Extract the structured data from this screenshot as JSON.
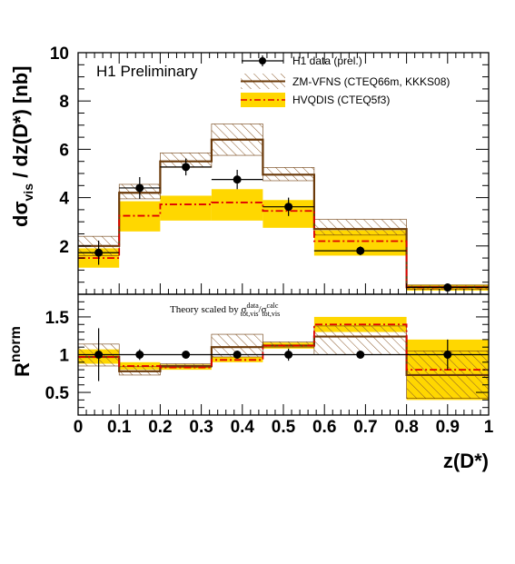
{
  "chart_data": [
    {
      "type": "histogram",
      "panel": "top",
      "annotation": "H1 Preliminary",
      "ylabel": "dσvis / dz(D*) [nb]",
      "ylabel_parts": {
        "d1": "d",
        "sigma": "σ",
        "sub": "vis",
        "rest": " / dz(D*) [nb]"
      },
      "ylim": [
        0,
        10
      ],
      "yticks": [
        "2",
        "4",
        "6",
        "8",
        "10"
      ],
      "bin_edges": [
        0,
        0.1,
        0.2,
        0.325,
        0.45,
        0.575,
        0.8,
        1.0
      ],
      "legend": [
        "H1 data (prel.)",
        "ZM-VFNS (CTEQ66m, KKKS08)",
        "HVQDIS (CTEQ5f3)"
      ],
      "data_points": [
        {
          "x": 0.05,
          "y": 1.72,
          "err": 0.5,
          "xerr": 0.05
        },
        {
          "x": 0.15,
          "y": 4.4,
          "err": 0.45,
          "xerr": 0.05
        },
        {
          "x": 0.2625,
          "y": 5.27,
          "err": 0.35,
          "xerr": 0.0625
        },
        {
          "x": 0.3875,
          "y": 4.75,
          "err": 0.4,
          "xerr": 0.0625
        },
        {
          "x": 0.5125,
          "y": 3.62,
          "err": 0.38,
          "xerr": 0.0625
        },
        {
          "x": 0.6875,
          "y": 1.8,
          "err": 0.18,
          "xerr": 0.1125
        },
        {
          "x": 0.9,
          "y": 0.28,
          "err": 0.06,
          "xerr": 0.1
        }
      ],
      "zmvfns": {
        "central": [
          2.0,
          4.2,
          5.5,
          6.4,
          4.95,
          2.7,
          0.3
        ],
        "low": [
          1.6,
          3.95,
          5.25,
          5.75,
          4.7,
          2.45,
          0.2
        ],
        "high": [
          2.4,
          4.55,
          5.85,
          7.05,
          5.25,
          3.1,
          0.38
        ]
      },
      "hvqdis": {
        "central": [
          1.5,
          3.25,
          3.72,
          3.8,
          3.45,
          2.2,
          0.28
        ],
        "low": [
          1.1,
          2.6,
          3.05,
          3.05,
          2.75,
          1.6,
          0.15
        ],
        "high": [
          1.9,
          3.85,
          4.08,
          4.35,
          3.9,
          2.65,
          0.4
        ]
      }
    },
    {
      "type": "histogram",
      "panel": "bottom",
      "ylabel": "R norm",
      "ylabel_parts": {
        "main": "R",
        "sup": "norm"
      },
      "ylim": [
        0.2,
        1.8
      ],
      "yticks": [
        "0.5",
        "1",
        "1.5"
      ],
      "xlabel": "z(D*)",
      "xlim": [
        0,
        1
      ],
      "xticks": [
        "0",
        "0.1",
        "0.2",
        "0.3",
        "0.4",
        "0.5",
        "0.6",
        "0.7",
        "0.8",
        "0.9",
        "1"
      ],
      "note": {
        "prefix": "Theory scaled by ",
        "s1": "σ",
        "s1_sup": "data",
        "s1_sub": "tot,vis",
        "slash": "/",
        "s2": "σ",
        "s2_sup": "calc",
        "s2_sub": "tot,vis"
      },
      "reference_line": 1.0,
      "bin_edges": [
        0,
        0.1,
        0.2,
        0.325,
        0.45,
        0.575,
        0.8,
        1.0
      ],
      "data_points": [
        {
          "x": 0.05,
          "y": 1.0,
          "err": 0.35,
          "xerr": 0.05
        },
        {
          "x": 0.15,
          "y": 1.0,
          "err": 0.07,
          "xerr": 0.05
        },
        {
          "x": 0.2625,
          "y": 1.0,
          "err": 0.04,
          "xerr": 0.0625
        },
        {
          "x": 0.3875,
          "y": 1.0,
          "err": 0.05,
          "xerr": 0.0625
        },
        {
          "x": 0.5125,
          "y": 1.0,
          "err": 0.08,
          "xerr": 0.0625
        },
        {
          "x": 0.6875,
          "y": 1.0,
          "err": 0.04,
          "xerr": 0.1125
        },
        {
          "x": 0.9,
          "y": 1.0,
          "err": 0.2,
          "xerr": 0.1
        }
      ],
      "zmvfns": {
        "central": [
          0.97,
          0.78,
          0.85,
          1.1,
          1.12,
          1.24,
          0.73
        ],
        "low": [
          0.85,
          0.73,
          0.83,
          0.97,
          1.1,
          1.0,
          0.42
        ],
        "high": [
          1.14,
          0.84,
          0.88,
          1.27,
          1.17,
          1.38,
          1.05
        ]
      },
      "hvqdis": {
        "central": [
          0.97,
          0.85,
          0.83,
          0.93,
          1.12,
          1.4,
          0.8
        ],
        "low": [
          0.88,
          0.8,
          0.8,
          0.9,
          1.08,
          1.3,
          0.4
        ],
        "high": [
          1.07,
          0.9,
          0.87,
          0.97,
          1.16,
          1.5,
          1.2
        ]
      }
    }
  ],
  "colors": {
    "zm": "#6b3a0a",
    "zm_hatch": "#8b5a2b",
    "hvq_band": "#ffd700",
    "hvq_line": "#e00000",
    "data": "#000000"
  }
}
